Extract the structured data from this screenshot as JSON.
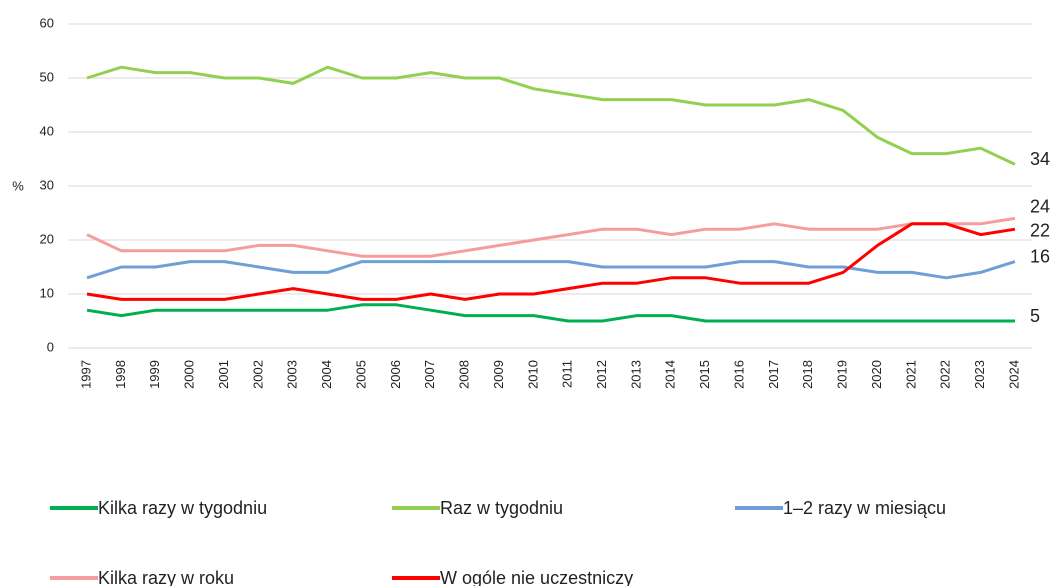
{
  "chart_data": {
    "type": "line",
    "y_label": "%",
    "categories": [
      "1997",
      "1998",
      "1999",
      "2000",
      "2001",
      "2002",
      "2003",
      "2004",
      "2005",
      "2006",
      "2007",
      "2008",
      "2009",
      "2010",
      "2011",
      "2012",
      "2013",
      "2014",
      "2015",
      "2016",
      "2017",
      "2018",
      "2019",
      "2020",
      "2021",
      "2022",
      "2023",
      "2024"
    ],
    "ylim": [
      0,
      60
    ],
    "yticks": [
      0,
      10,
      20,
      30,
      40,
      50,
      60
    ],
    "grid": true,
    "series": [
      {
        "name": "Kilka razy w tygodniu",
        "color": "#00b050",
        "values": [
          7,
          6,
          7,
          7,
          7,
          7,
          7,
          7,
          8,
          8,
          7,
          6,
          6,
          6,
          5,
          5,
          6,
          6,
          5,
          5,
          5,
          5,
          5,
          5,
          5,
          5,
          5,
          5
        ],
        "end_label": 5
      },
      {
        "name": "Raz w tygodniu",
        "color": "#92d050",
        "values": [
          50,
          52,
          51,
          51,
          50,
          50,
          49,
          52,
          50,
          50,
          51,
          50,
          50,
          48,
          47,
          46,
          46,
          46,
          45,
          45,
          45,
          46,
          44,
          39,
          36,
          36,
          37,
          34
        ],
        "end_label": 34
      },
      {
        "name": "1–2 razy w miesiącu",
        "color": "#6e9fd6",
        "values": [
          13,
          15,
          15,
          16,
          16,
          15,
          14,
          14,
          16,
          16,
          16,
          16,
          16,
          16,
          16,
          15,
          15,
          15,
          15,
          16,
          16,
          15,
          15,
          14,
          14,
          13,
          14,
          16
        ],
        "end_label": 16
      },
      {
        "name": "Kilka razy w roku",
        "color": "#f59d9d",
        "values": [
          21,
          18,
          18,
          18,
          18,
          19,
          19,
          18,
          17,
          17,
          17,
          18,
          19,
          20,
          21,
          22,
          22,
          21,
          22,
          22,
          23,
          22,
          22,
          22,
          23,
          23,
          23,
          24
        ],
        "end_label": 24
      },
      {
        "name": "W ogóle nie uczestniczy",
        "color": "#ff0000",
        "values": [
          10,
          9,
          9,
          9,
          9,
          10,
          11,
          10,
          9,
          9,
          10,
          9,
          10,
          10,
          11,
          12,
          12,
          13,
          13,
          12,
          12,
          12,
          14,
          19,
          23,
          23,
          21,
          22
        ],
        "end_label": 22
      }
    ]
  }
}
